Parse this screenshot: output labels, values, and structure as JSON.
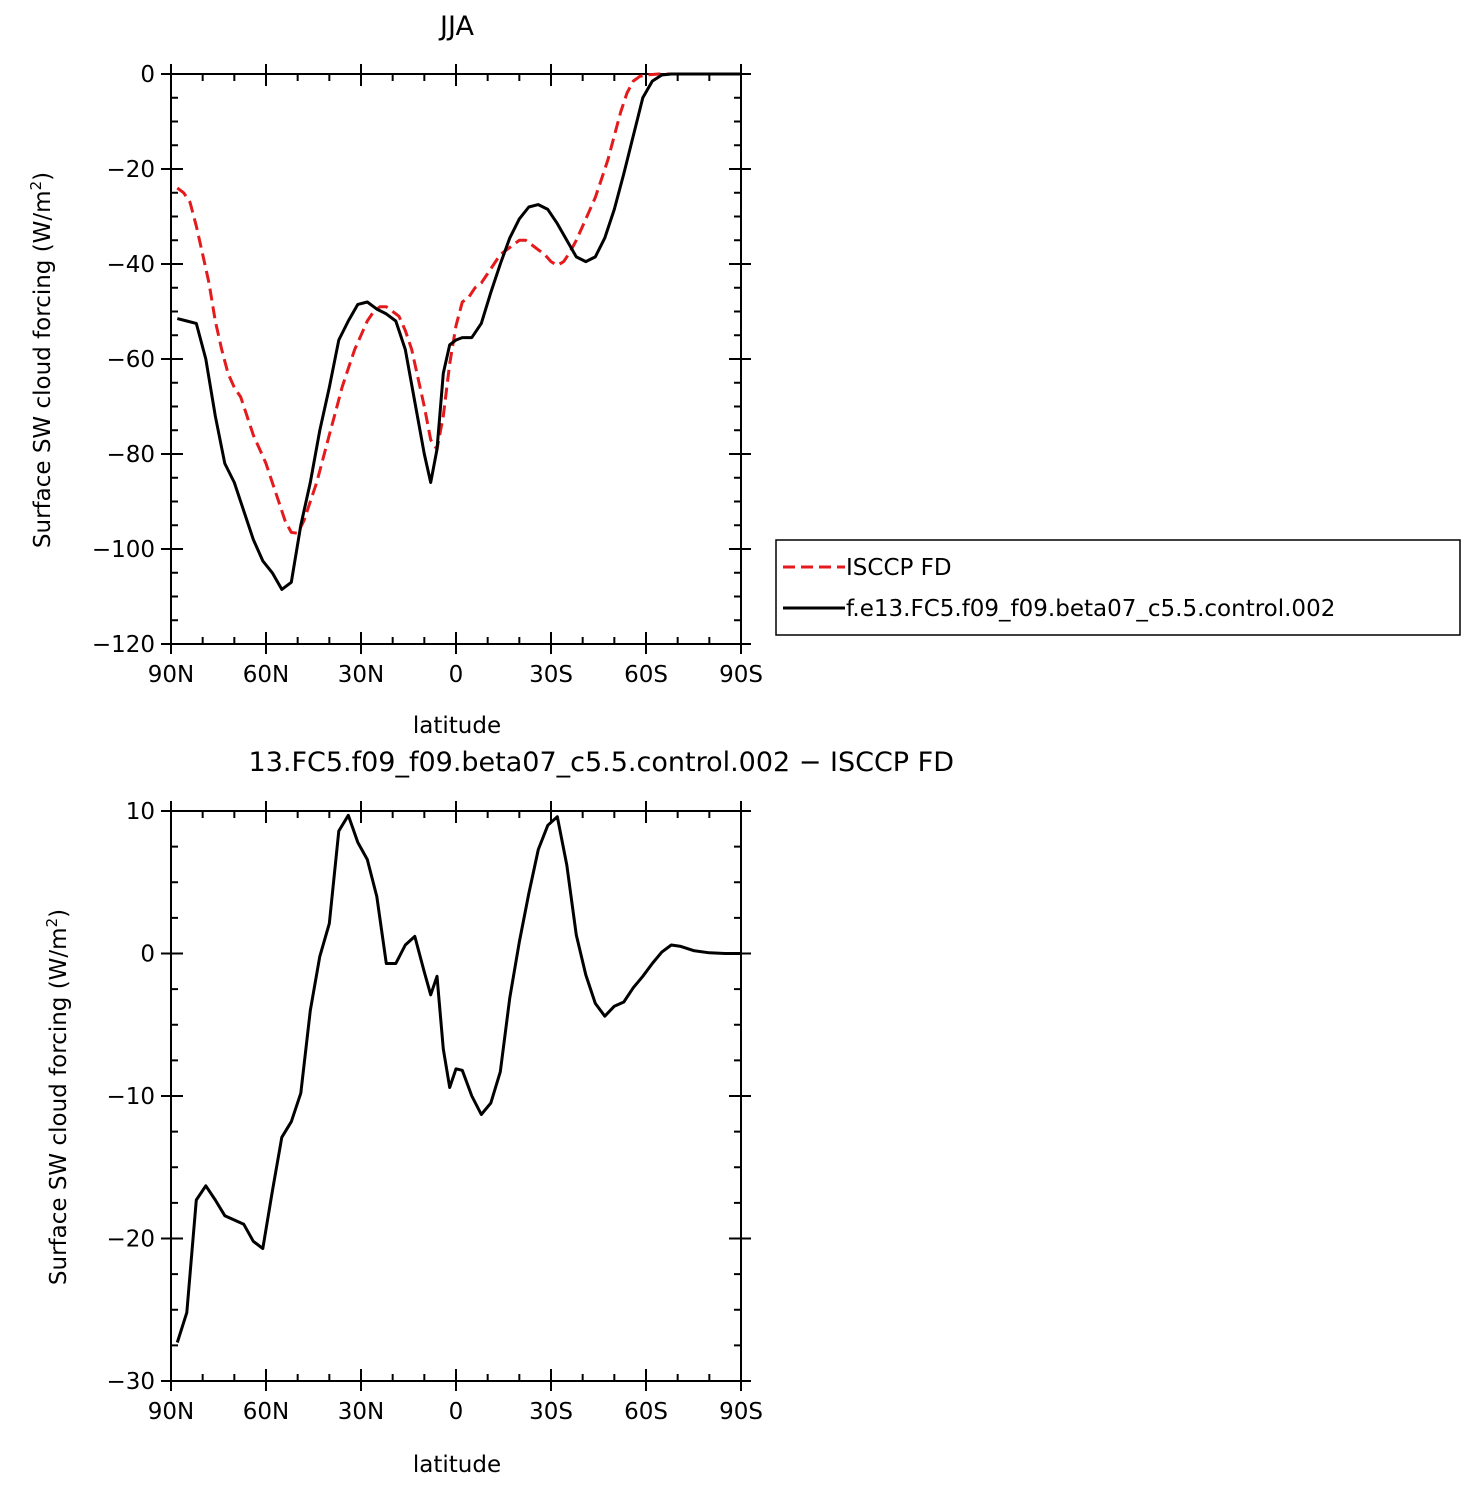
{
  "chart_data": [
    {
      "type": "line",
      "title": "JJA",
      "xlabel": "latitude",
      "ylabel_main": "Surface SW cloud forcing (W/m",
      "ylabel_sup": "2",
      "ylabel_close": ")",
      "xlim": [
        -90,
        90
      ],
      "ylim": [
        -120,
        0
      ],
      "xticks": [
        -90,
        -60,
        -30,
        0,
        30,
        60,
        90
      ],
      "xtick_labels": [
        "90N",
        "60N",
        "30N",
        "0",
        "30S",
        "60S",
        "90S"
      ],
      "yticks": [
        0,
        -20,
        -40,
        -60,
        -80,
        -100,
        -120
      ],
      "ytick_labels": [
        "0",
        "−20",
        "−40",
        "−60",
        "−80",
        "−100",
        "−120"
      ],
      "legend_position": "right",
      "series": [
        {
          "name": "ISCCP FD",
          "color": "#e41a1c",
          "dash": "dashed",
          "x": [
            -88,
            -86,
            -84,
            -82,
            -80,
            -78,
            -76,
            -74,
            -72,
            -70,
            -68,
            -66,
            -64,
            -62,
            -60,
            -58,
            -56,
            -54,
            -52,
            -50,
            -48,
            -46,
            -44,
            -42,
            -40,
            -38,
            -36,
            -34,
            -32,
            -30,
            -28,
            -26,
            -24,
            -22,
            -20,
            -18,
            -16,
            -14,
            -12,
            -10,
            -8,
            -6,
            -4,
            -2,
            0,
            2,
            4,
            6,
            8,
            10,
            12,
            14,
            16,
            18,
            20,
            22,
            24,
            26,
            28,
            30,
            32,
            34,
            36,
            38,
            40,
            42,
            44,
            46,
            48,
            50,
            52,
            54,
            56,
            58,
            60,
            62,
            64,
            66,
            68,
            70,
            75,
            80,
            85,
            90
          ],
          "values": [
            -24,
            -25,
            -27,
            -32,
            -38,
            -44,
            -52,
            -58,
            -63,
            -66,
            -68,
            -72,
            -76,
            -79,
            -82,
            -86,
            -90,
            -94,
            -96.5,
            -96.7,
            -94,
            -90,
            -86,
            -81,
            -76,
            -71,
            -66,
            -62,
            -58,
            -55,
            -52,
            -50,
            -49,
            -49,
            -50,
            -51,
            -54,
            -58,
            -64,
            -70,
            -77,
            -79,
            -72,
            -61,
            -53,
            -48,
            -47,
            -45,
            -44,
            -42,
            -40,
            -38,
            -37,
            -36,
            -35,
            -35,
            -36,
            -37,
            -38,
            -39.5,
            -40.3,
            -39.5,
            -37.5,
            -35,
            -32,
            -29,
            -26,
            -22,
            -18,
            -13,
            -8,
            -4,
            -1.5,
            -0.5,
            -0.2,
            -0.1,
            0,
            0,
            0,
            0,
            0,
            0,
            0,
            0
          ]
        },
        {
          "name": "f.e13.FC5.f09_f09.beta07_c5.5.control.002",
          "color": "#000000",
          "dash": "solid",
          "x": [
            -88,
            -85,
            -82,
            -79,
            -76,
            -73,
            -70,
            -67,
            -64,
            -61,
            -58,
            -55,
            -52,
            -49,
            -46,
            -43,
            -40,
            -37,
            -34,
            -31,
            -28,
            -25,
            -22,
            -19,
            -16,
            -13,
            -10,
            -8,
            -6,
            -4,
            -2,
            0,
            2,
            5,
            8,
            11,
            14,
            17,
            20,
            23,
            26,
            29,
            32,
            35,
            38,
            41,
            44,
            47,
            50,
            53,
            56,
            59,
            62,
            65,
            68,
            71,
            75,
            80,
            85,
            90
          ],
          "values": [
            -51.5,
            -52,
            -52.5,
            -60,
            -72,
            -82,
            -86,
            -92,
            -98,
            -102.5,
            -105,
            -108.5,
            -107,
            -95,
            -86,
            -75,
            -66,
            -56,
            -52,
            -48.5,
            -48,
            -49.5,
            -50.5,
            -52,
            -58,
            -69,
            -80,
            -86,
            -79,
            -63,
            -57,
            -56,
            -55.5,
            -55.5,
            -52.5,
            -46,
            -40,
            -34.5,
            -30.5,
            -28,
            -27.5,
            -28.5,
            -31.5,
            -35,
            -38.5,
            -39.5,
            -38.5,
            -34.5,
            -28.5,
            -21,
            -13,
            -5,
            -1.5,
            -0.2,
            0,
            0,
            0,
            0,
            0,
            0
          ]
        }
      ]
    },
    {
      "type": "line",
      "title": "13.FC5.f09_f09.beta07_c5.5.control.002 − ISCCP FD",
      "xlabel": "latitude",
      "ylabel_main": "Surface SW cloud forcing (W/m",
      "ylabel_sup": "2",
      "ylabel_close": ")",
      "xlim": [
        -90,
        90
      ],
      "ylim": [
        -30,
        10
      ],
      "xticks": [
        -90,
        -60,
        -30,
        0,
        30,
        60,
        90
      ],
      "xtick_labels": [
        "90N",
        "60N",
        "30N",
        "0",
        "30S",
        "60S",
        "90S"
      ],
      "yticks": [
        10,
        0,
        -10,
        -20,
        -30
      ],
      "ytick_labels": [
        "10",
        "0",
        "−10",
        "−20",
        "−30"
      ],
      "series": [
        {
          "color": "#000000",
          "dash": "solid",
          "x": [
            -88,
            -85,
            -82,
            -79,
            -76,
            -73,
            -70,
            -67,
            -64,
            -61,
            -58,
            -55,
            -52,
            -49,
            -46,
            -43,
            -40,
            -37,
            -34,
            -31,
            -28,
            -25,
            -22,
            -19,
            -16,
            -13,
            -10,
            -8,
            -6,
            -4,
            -2,
            0,
            2,
            5,
            8,
            11,
            14,
            17,
            20,
            23,
            26,
            29,
            32,
            35,
            38,
            41,
            44,
            47,
            50,
            53,
            56,
            59,
            62,
            65,
            68,
            71,
            75,
            80,
            85,
            90
          ],
          "values": [
            -27.3,
            -25.2,
            -17.3,
            -16.3,
            -17.3,
            -18.4,
            -18.7,
            -19,
            -20.2,
            -20.7,
            -16.7,
            -12.9,
            -11.8,
            -9.8,
            -4,
            -0.2,
            2.1,
            8.6,
            9.7,
            7.8,
            6.6,
            4,
            -0.7,
            -0.7,
            0.6,
            1.2,
            -1.3,
            -2.9,
            -1.6,
            -6.7,
            -9.4,
            -8.1,
            -8.2,
            -10,
            -11.3,
            -10.5,
            -8.3,
            -3.1,
            0.8,
            4.2,
            7.3,
            9,
            9.6,
            6.2,
            1.3,
            -1.5,
            -3.5,
            -4.4,
            -3.7,
            -3.4,
            -2.4,
            -1.6,
            -0.7,
            0.1,
            0.6,
            0.5,
            0.2,
            0.05,
            0,
            0
          ]
        }
      ]
    }
  ]
}
